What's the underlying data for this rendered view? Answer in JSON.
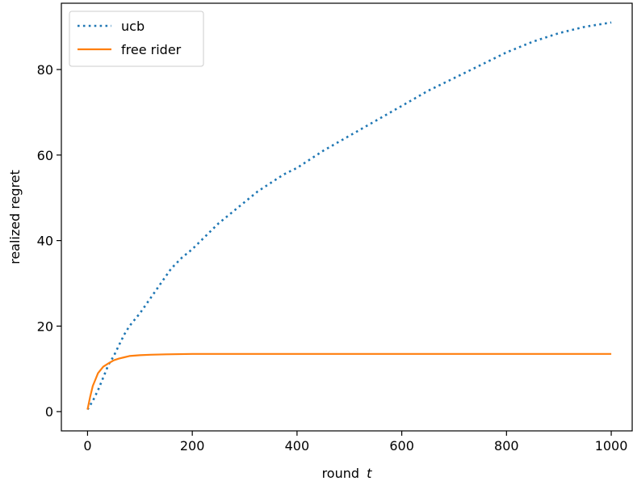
{
  "chart_data": {
    "type": "line",
    "xlabel": "round",
    "xlabel_var": "t",
    "ylabel": "realized regret",
    "xlim": [
      -50,
      1040
    ],
    "ylim": [
      -4.5,
      95.5
    ],
    "xticks": [
      0,
      200,
      400,
      600,
      800,
      1000
    ],
    "yticks": [
      0,
      20,
      40,
      60,
      80
    ],
    "legend": {
      "placement": "upper-left"
    },
    "grid": false,
    "series": [
      {
        "name": "ucb",
        "color": "#1f77b4",
        "style": "dotted",
        "x": [
          0,
          10,
          20,
          30,
          40,
          50,
          60,
          70,
          80,
          100,
          120,
          140,
          160,
          180,
          200,
          225,
          250,
          275,
          300,
          325,
          350,
          375,
          400,
          450,
          500,
          550,
          600,
          650,
          700,
          750,
          800,
          850,
          900,
          950,
          1000
        ],
        "y": [
          0.5,
          2.5,
          5,
          8,
          11,
          13,
          15.5,
          18,
          20,
          23,
          26.5,
          30,
          33.5,
          36,
          38,
          41,
          44,
          46.5,
          49,
          51.5,
          53.5,
          55.5,
          57,
          61,
          64.5,
          68,
          71.5,
          75,
          78,
          81,
          84,
          86.5,
          88.5,
          90,
          91
        ]
      },
      {
        "name": "free rider",
        "color": "#ff7f0e",
        "style": "solid",
        "x": [
          0,
          5,
          10,
          15,
          20,
          30,
          40,
          50,
          60,
          70,
          80,
          100,
          120,
          150,
          200,
          300,
          400,
          500,
          600,
          700,
          800,
          900,
          1000
        ],
        "y": [
          0.5,
          3.5,
          6,
          7.5,
          9,
          10.5,
          11.3,
          12,
          12.4,
          12.7,
          13,
          13.2,
          13.3,
          13.4,
          13.5,
          13.5,
          13.5,
          13.5,
          13.5,
          13.5,
          13.5,
          13.5,
          13.5
        ]
      }
    ]
  }
}
